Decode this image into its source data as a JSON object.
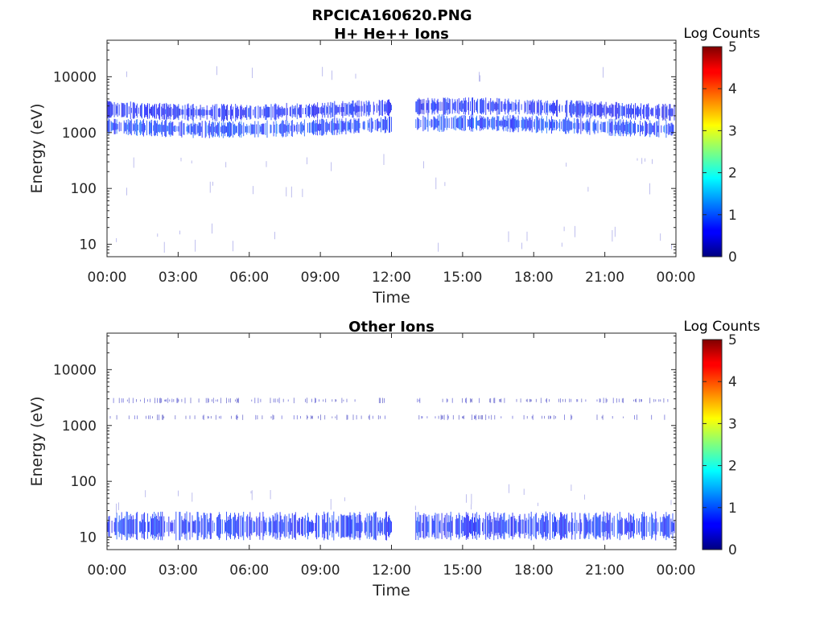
{
  "figure_title": "RPCICA160620.PNG",
  "colorbar": {
    "label": "Log Counts",
    "min": 0,
    "max": 5,
    "ticks": [
      "0",
      "1",
      "2",
      "3",
      "4",
      "5"
    ],
    "colormap": "jet"
  },
  "chart_data": [
    {
      "type": "heatmap",
      "title": "H+ He++ Ions",
      "xlabel": "Time",
      "ylabel": "Energy (eV)",
      "yscale": "log",
      "ylim": [
        6,
        45000
      ],
      "xlim_hours": [
        0,
        24
      ],
      "x_tick_labels": [
        "00:00",
        "03:00",
        "06:00",
        "09:00",
        "12:00",
        "15:00",
        "18:00",
        "21:00",
        "00:00"
      ],
      "y_tick_labels": [
        "10",
        "100",
        "1000",
        "10000"
      ],
      "data_gap_hours": [
        12.0,
        13.0
      ],
      "bands": [
        {
          "energy_ev": 1300,
          "log_counts": 1.0
        },
        {
          "energy_ev": 2600,
          "log_counts": 0.8
        }
      ],
      "sparse_energy_ev": [
        10,
        15,
        100,
        300,
        10000
      ]
    },
    {
      "type": "heatmap",
      "title": "Other Ions",
      "xlabel": "Time",
      "ylabel": "Energy (eV)",
      "yscale": "log",
      "ylim": [
        6,
        45000
      ],
      "xlim_hours": [
        0,
        24
      ],
      "x_tick_labels": [
        "00:00",
        "03:00",
        "06:00",
        "09:00",
        "12:00",
        "15:00",
        "18:00",
        "21:00",
        "00:00"
      ],
      "y_tick_labels": [
        "10",
        "100",
        "1000",
        "10000"
      ],
      "data_gap_hours": [
        12.0,
        13.0
      ],
      "bands": [
        {
          "energy_ev": 15,
          "log_counts": 0.9
        },
        {
          "energy_ev": 1400,
          "log_counts": 0.3
        },
        {
          "energy_ev": 2800,
          "log_counts": 0.3
        }
      ],
      "sparse_energy_ev": [
        40,
        60
      ]
    }
  ]
}
